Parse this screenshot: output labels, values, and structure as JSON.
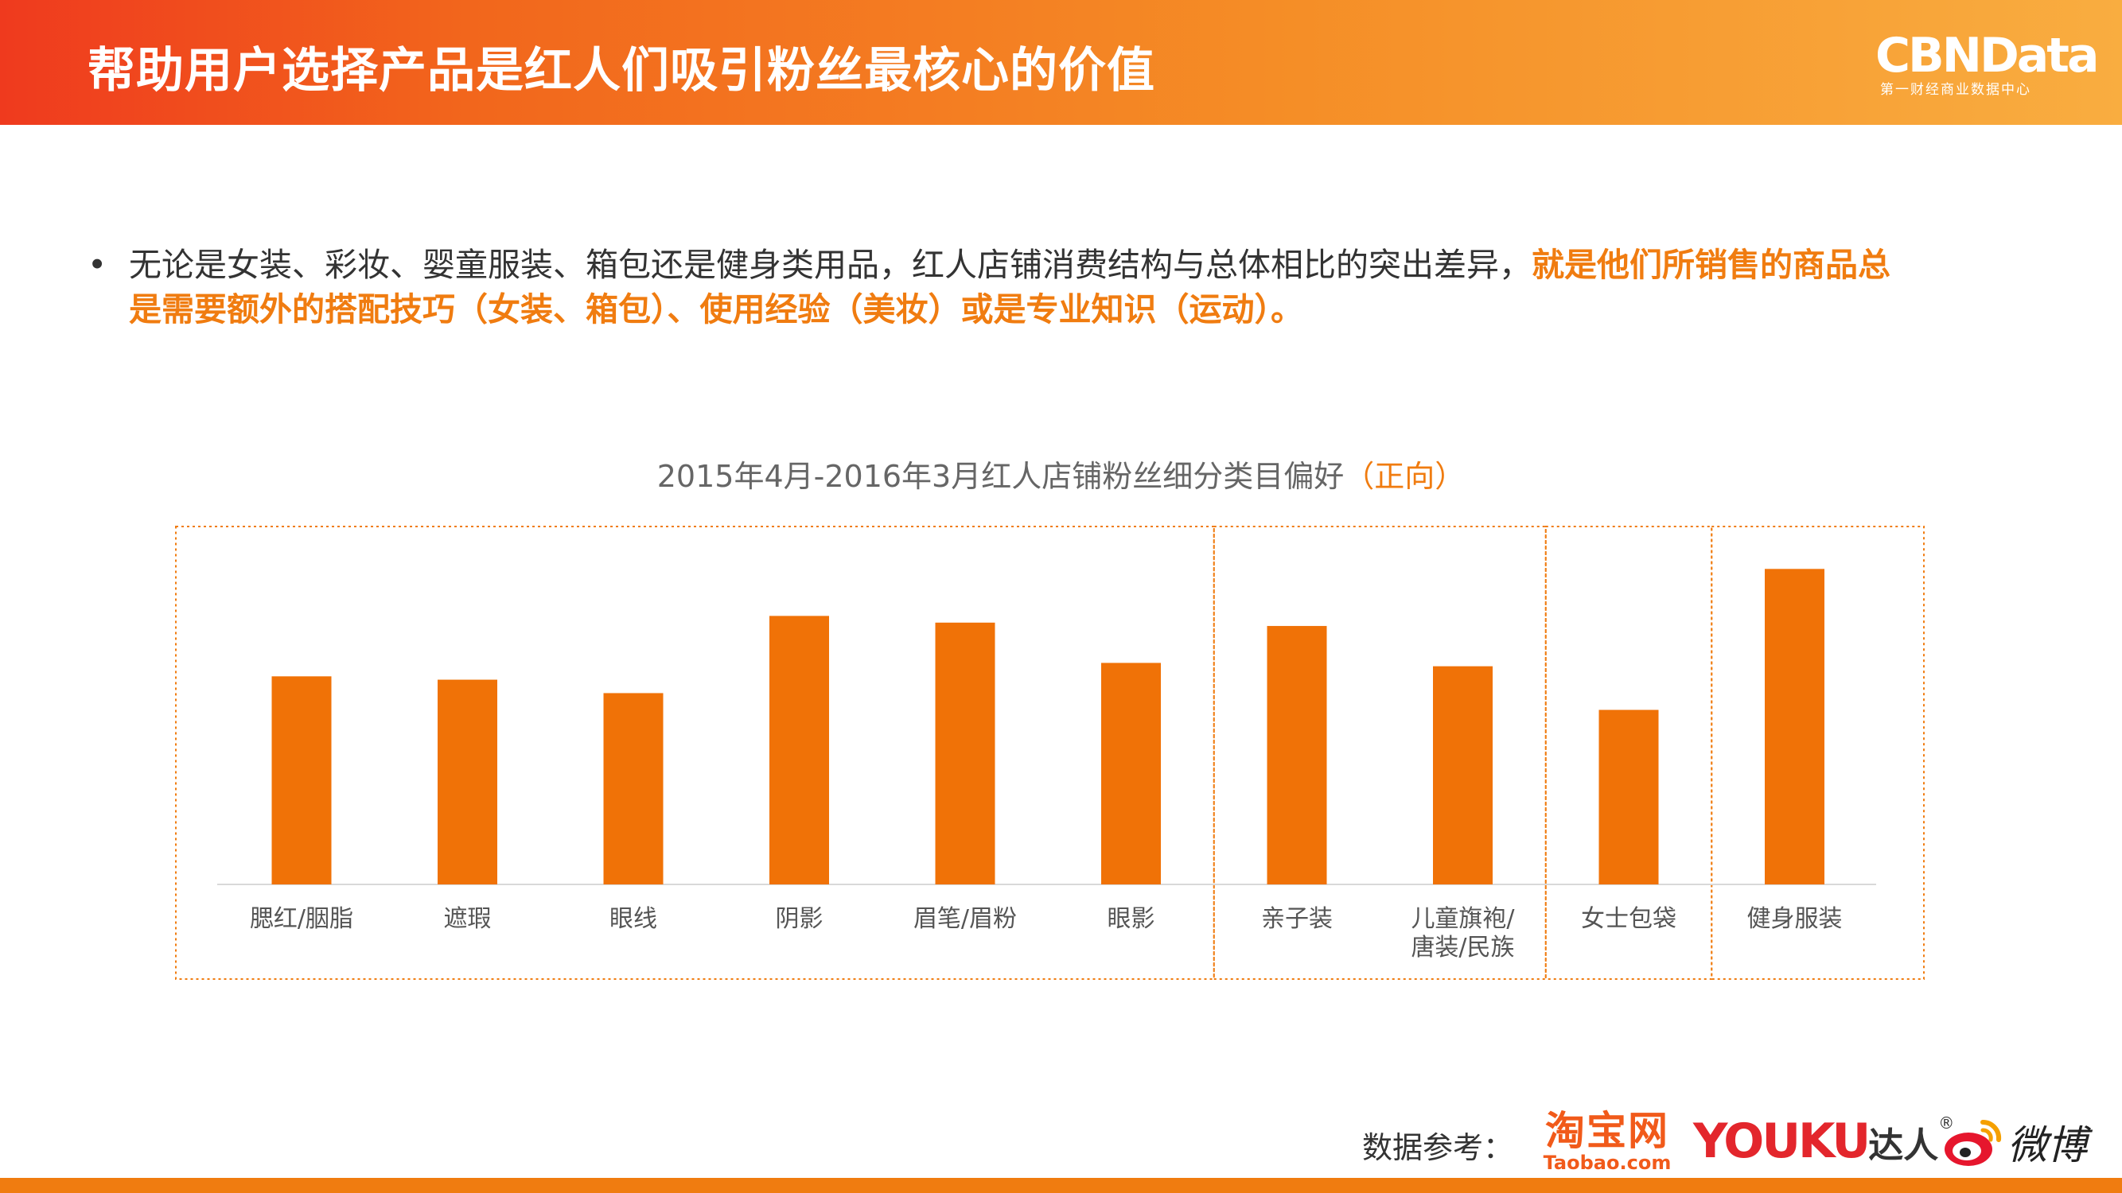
{
  "header": {
    "title": "帮助用户选择产品是红人们吸引粉丝最核心的价值"
  },
  "logo": {
    "name": "CBNData",
    "subtitle": "第一财经商业数据中心"
  },
  "bullet": {
    "marker": "•",
    "plain_text": "无论是女装、彩妆、婴童服装、箱包还是健身类用品，红人店铺消费结构与总体相比的突出差异，",
    "highlight_text": "就是他们所销售的商品总是需要额外的搭配技巧（女装、箱包）、使用经验（美妆）或是专业知识（运动）。"
  },
  "chart_data": {
    "type": "bar",
    "title": "2015年4月-2016年3月红人店铺粉丝细分类目偏好",
    "title_accent": "（正向）",
    "categories": [
      "腮红/胭脂",
      "遮瑕",
      "眼线",
      "阴影",
      "眉笔/眉粉",
      "眼影",
      "亲子装",
      "儿童旗袍/唐装/民族",
      "女士包袋",
      "健身服装"
    ],
    "category_lines": [
      [
        "腮红/胭脂"
      ],
      [
        "遮瑕"
      ],
      [
        "眼线"
      ],
      [
        "阴影"
      ],
      [
        "眉笔/眉粉"
      ],
      [
        "眼影"
      ],
      [
        "亲子装"
      ],
      [
        "儿童旗袍/",
        "唐装/民族"
      ],
      [
        "女士包袋"
      ],
      [
        "健身服装"
      ]
    ],
    "values": [
      0.62,
      0.61,
      0.57,
      0.8,
      0.78,
      0.66,
      0.77,
      0.65,
      0.52,
      0.94
    ],
    "ylim": [
      0,
      1
    ],
    "groups": [
      [
        0,
        5
      ],
      [
        6,
        7
      ],
      [
        8,
        8
      ],
      [
        9,
        9
      ]
    ],
    "grid": false,
    "bar_color": "#f07207",
    "group_border_color": "#f07c10"
  },
  "footer": {
    "source_label": "数据参考：",
    "taobao_cn": "淘宝网",
    "taobao_en": "Taobao.com",
    "youku_word": "YOUKU",
    "youku_daren": "达人",
    "youku_reg": "®",
    "weibo_text": "微博"
  },
  "colors": {
    "accent": "#f07c10",
    "header_start": "#ef3a1e",
    "header_end": "#f9ad40",
    "youku_red": "#e3262c"
  }
}
